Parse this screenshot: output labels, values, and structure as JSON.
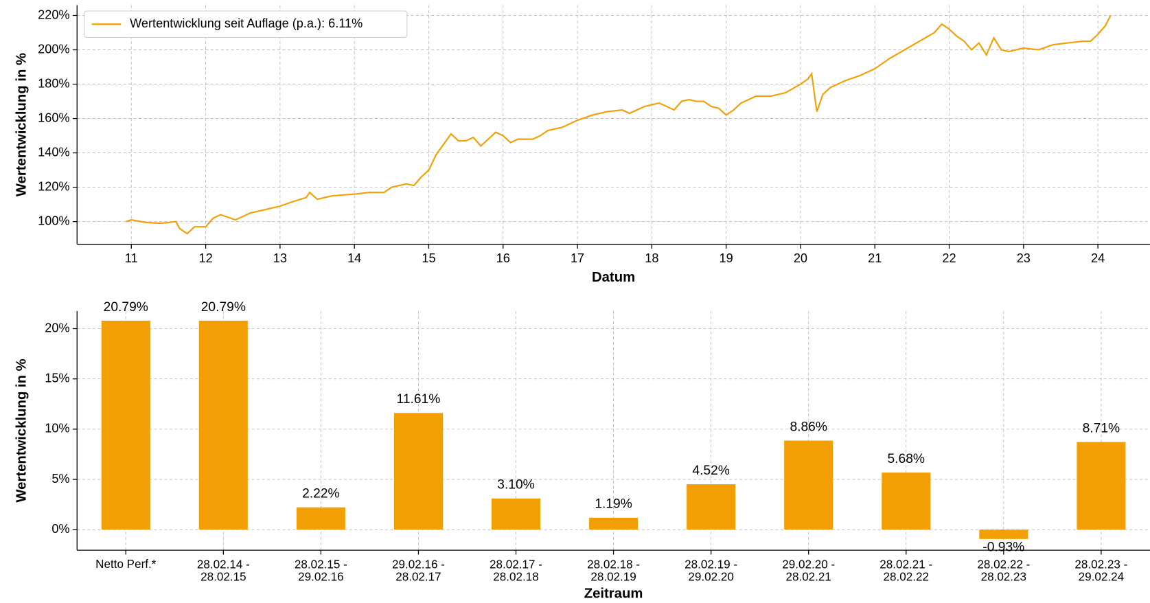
{
  "chart_data": [
    {
      "type": "line",
      "ylabel": "Wertentwicklung in %",
      "xlabel": "Datum",
      "x": [
        10.93,
        11.0,
        11.2,
        11.4,
        11.6,
        11.65,
        11.75,
        11.85,
        12.0,
        12.1,
        12.2,
        12.4,
        12.5,
        12.6,
        12.8,
        13.0,
        13.2,
        13.35,
        13.4,
        13.5,
        13.7,
        14.0,
        14.2,
        14.4,
        14.5,
        14.7,
        14.8,
        14.9,
        15.0,
        15.1,
        15.2,
        15.3,
        15.4,
        15.5,
        15.6,
        15.7,
        15.8,
        15.9,
        16.0,
        16.1,
        16.2,
        16.4,
        16.5,
        16.6,
        16.8,
        17.0,
        17.2,
        17.4,
        17.6,
        17.7,
        17.9,
        18.0,
        18.1,
        18.2,
        18.3,
        18.4,
        18.5,
        18.6,
        18.7,
        18.8,
        18.9,
        19.0,
        19.1,
        19.2,
        19.4,
        19.6,
        19.8,
        20.0,
        20.1,
        20.15,
        20.2,
        20.22,
        20.3,
        20.4,
        20.6,
        20.8,
        21.0,
        21.2,
        21.4,
        21.6,
        21.8,
        21.9,
        22.0,
        22.1,
        22.2,
        22.3,
        22.4,
        22.5,
        22.6,
        22.7,
        22.8,
        23.0,
        23.2,
        23.4,
        23.6,
        23.8,
        23.9,
        24.0,
        24.1,
        24.17
      ],
      "series": [
        {
          "name": "Wertentwicklung seit Auflage (p.a.): 6.11%",
          "color": "#f29f05",
          "values": [
            100,
            101,
            99.5,
            99,
            100,
            96,
            93,
            97,
            97,
            102,
            104,
            101,
            103,
            105,
            107,
            109,
            112,
            114,
            117,
            113,
            115,
            116,
            117,
            117,
            120,
            122,
            121,
            126,
            130,
            139,
            145,
            151,
            147,
            147,
            149,
            144,
            148,
            152,
            150,
            146,
            148,
            148,
            150,
            153,
            155,
            159,
            162,
            164,
            165,
            163,
            167,
            168,
            169,
            167,
            165,
            170,
            171,
            170,
            170,
            167,
            166,
            162,
            165,
            169,
            173,
            173,
            175,
            180,
            183,
            186,
            170,
            164,
            174,
            178,
            182,
            185,
            189,
            195,
            200,
            205,
            210,
            215,
            212,
            208,
            205,
            200,
            204,
            197,
            207,
            200,
            199,
            201,
            200,
            203,
            204,
            205,
            205,
            209,
            214,
            220
          ]
        }
      ],
      "xlim": [
        10.27,
        24.7
      ],
      "xticks": [
        11,
        12,
        13,
        14,
        15,
        16,
        17,
        18,
        19,
        20,
        21,
        22,
        23,
        24
      ],
      "ylim": [
        86.8,
        226
      ],
      "yticks": [
        {
          "value": 100,
          "label": "100%"
        },
        {
          "value": 120,
          "label": "120%"
        },
        {
          "value": 140,
          "label": "140%"
        },
        {
          "value": 160,
          "label": "160%"
        },
        {
          "value": 180,
          "label": "180%"
        },
        {
          "value": 200,
          "label": "200%"
        },
        {
          "value": 220,
          "label": "220%"
        }
      ],
      "grid": true,
      "legend": "upper left"
    },
    {
      "type": "bar",
      "ylabel": "Wertentwicklung in %",
      "xlabel": "Zeitraum",
      "categories": [
        "Netto Perf.*",
        "28.02.14 -\n28.02.15",
        "28.02.15 -\n29.02.16",
        "29.02.16 -\n28.02.17",
        "28.02.17 -\n28.02.18",
        "28.02.18 -\n28.02.19",
        "28.02.19 -\n29.02.20",
        "29.02.20 -\n28.02.21",
        "28.02.21 -\n28.02.22",
        "28.02.22 -\n28.02.23",
        "28.02.23 -\n29.02.24"
      ],
      "values": [
        20.79,
        20.79,
        2.22,
        11.61,
        3.1,
        1.19,
        4.52,
        8.86,
        5.68,
        -0.93,
        8.71
      ],
      "value_labels": [
        "20.79%",
        "20.79%",
        "2.22%",
        "11.61%",
        "3.10%",
        "1.19%",
        "4.52%",
        "8.86%",
        "5.68%",
        "-0.93%",
        "8.71%"
      ],
      "color": "#f29f05",
      "ylim": [
        -2.04,
        21.75
      ],
      "yticks": [
        {
          "value": 0,
          "label": "0%"
        },
        {
          "value": 5,
          "label": "5%"
        },
        {
          "value": 10,
          "label": "10%"
        },
        {
          "value": 15,
          "label": "15%"
        },
        {
          "value": 20,
          "label": "20%"
        }
      ],
      "grid": true
    }
  ]
}
